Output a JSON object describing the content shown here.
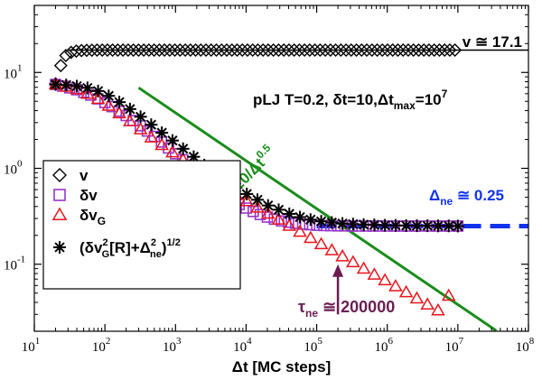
{
  "chart_data": {
    "type": "scatter",
    "title": "",
    "xlabel": "Δt [MC steps]",
    "ylabel": "",
    "xscale": "log",
    "yscale": "log",
    "xlim": [
      10,
      100000000
    ],
    "ylim": [
      0.02,
      50
    ],
    "x_ticks": [
      {
        "value": 10,
        "base": "10",
        "exp": "1"
      },
      {
        "value": 100,
        "base": "10",
        "exp": "2"
      },
      {
        "value": 1000,
        "base": "10",
        "exp": "3"
      },
      {
        "value": 10000,
        "base": "10",
        "exp": "4"
      },
      {
        "value": 100000,
        "base": "10",
        "exp": "5"
      },
      {
        "value": 1000000,
        "base": "10",
        "exp": "6"
      },
      {
        "value": 10000000,
        "base": "10",
        "exp": "7"
      },
      {
        "value": 100000000,
        "base": "10",
        "exp": "8"
      }
    ],
    "y_ticks": [
      {
        "value": 0.1,
        "base": "10",
        "exp": "-1"
      },
      {
        "value": 1,
        "base": "10",
        "exp": "0"
      },
      {
        "value": 10,
        "base": "10",
        "exp": "1"
      }
    ],
    "grid": false,
    "legend_position": "bottom-left",
    "series": [
      {
        "name": "v",
        "marker": "diamond",
        "color": "#000000",
        "x": [
          20,
          23.7,
          28,
          33.2,
          39.3,
          46.6,
          55.2,
          65.4,
          77.4,
          91.7,
          108.6,
          128.6,
          152.3,
          180.3,
          213.6,
          253,
          299.6,
          354.8,
          420.2,
          497.7,
          589.5,
          698.1,
          826.8,
          979.2,
          1159.7,
          1373.4,
          1626.7,
          1926.5,
          2281.7,
          2702.3,
          3200.5,
          3790.5,
          4489.3,
          5317,
          6297,
          7458,
          8833,
          10461,
          12390,
          14674,
          17379,
          20583,
          24378,
          28872,
          34195,
          40499,
          47965,
          56808,
          67281,
          79685,
          94375,
          111774,
          132380,
          156785,
          185689,
          219922,
          260466,
          308484,
          365355,
          432711,
          512483,
          606961,
          718857,
          851384,
          1008343,
          1194239,
          1414406,
          1675161,
          1983989,
          2349752,
          2782945,
          3296000,
          3903640,
          4623301,
          5475635,
          6485106,
          7680681,
          9096671
        ],
        "y": [
          7.6,
          11.8,
          15.0,
          16.2,
          16.7,
          16.9,
          17.0,
          17.05,
          17.1,
          17.1,
          17.1,
          17.1,
          17.1,
          17.1,
          17.1,
          17.1,
          17.1,
          17.1,
          17.1,
          17.1,
          17.1,
          17.1,
          17.1,
          17.1,
          17.1,
          17.1,
          17.1,
          17.1,
          17.1,
          17.1,
          17.1,
          17.1,
          17.1,
          17.1,
          17.1,
          17.1,
          17.1,
          17.1,
          17.1,
          17.1,
          17.1,
          17.1,
          17.1,
          17.1,
          17.1,
          17.1,
          17.1,
          17.1,
          17.1,
          17.1,
          17.1,
          17.1,
          17.1,
          17.1,
          17.1,
          17.1,
          17.1,
          17.1,
          17.1,
          17.1,
          17.1,
          17.1,
          17.1,
          17.1,
          17.1,
          17.1,
          17.1,
          17.1,
          17.1,
          17.1,
          17.1,
          17.1,
          17.1,
          17.1,
          17.1,
          17.1,
          17.1,
          17.1
        ]
      },
      {
        "name": "δv",
        "marker": "square",
        "color": "#9a35c9",
        "x": [
          20,
          25.2,
          31.7,
          39.9,
          50.2,
          63.2,
          79.6,
          100.2,
          126.2,
          158.9,
          200,
          251.8,
          317,
          399.1,
          502.4,
          632.5,
          796.3,
          1002.5,
          1262,
          1588.9,
          2000,
          2517.9,
          3169.8,
          3990.5,
          5023.8,
          6324.6,
          7962.1,
          10023.7,
          12619.1,
          15886.6,
          20000,
          25178.5,
          31697.9,
          39905.2,
          50237.7,
          63245.6,
          79621.4,
          100237.4,
          126191.5,
          158865.6,
          200000,
          251785.1,
          316978.5,
          399052.5,
          502377.3,
          632455.5,
          796214.3,
          1002374,
          1261915,
          1588656,
          2000000,
          2517851,
          3169786,
          3990525,
          5023773,
          6324555,
          7962143,
          10000000
        ],
        "y": [
          7.5,
          7.2,
          6.9,
          6.6,
          6.2,
          5.8,
          5.3,
          4.85,
          4.4,
          3.95,
          3.55,
          3.15,
          2.78,
          2.45,
          2.15,
          1.88,
          1.63,
          1.42,
          1.23,
          1.06,
          0.92,
          0.8,
          0.69,
          0.6,
          0.52,
          0.465,
          0.42,
          0.385,
          0.355,
          0.33,
          0.31,
          0.295,
          0.283,
          0.274,
          0.267,
          0.262,
          0.258,
          0.255,
          0.253,
          0.252,
          0.251,
          0.251,
          0.25,
          0.25,
          0.25,
          0.25,
          0.25,
          0.25,
          0.25,
          0.25,
          0.25,
          0.25,
          0.25,
          0.25,
          0.25,
          0.25,
          0.25,
          0.25
        ]
      },
      {
        "name": "δv_G",
        "marker": "triangle",
        "color": "#e8141c",
        "x": [
          20,
          28.3,
          40,
          56.6,
          80,
          113.1,
          160,
          226.3,
          320,
          452.5,
          640,
          905.1,
          1280,
          1810.2,
          2560,
          3620.4,
          5120,
          7240.8,
          10240,
          14481.5,
          20480,
          28963.1,
          40960,
          57926.1,
          81920,
          115852.3,
          163840,
          231704.5,
          327680,
          463409,
          655360,
          926818,
          1310720,
          1853636,
          2621440,
          3707272,
          5242880,
          7414544
        ],
        "y": [
          7.5,
          7.1,
          6.7,
          6.0,
          5.3,
          4.5,
          3.75,
          3.1,
          2.55,
          2.1,
          1.75,
          1.47,
          1.23,
          1.03,
          0.86,
          0.73,
          0.62,
          0.53,
          0.455,
          0.39,
          0.337,
          0.292,
          0.252,
          0.218,
          0.188,
          0.162,
          0.14,
          0.121,
          0.105,
          0.09,
          0.078,
          0.068,
          0.059,
          0.051,
          0.044,
          0.038,
          0.033,
          0.047
        ]
      },
      {
        "name": "(δv_G²[R]+Δ_ne²)^1/2",
        "marker": "asterisk",
        "color": "#000000",
        "x": [
          20,
          28.3,
          40,
          56.6,
          80,
          113.1,
          160,
          226.3,
          320,
          452.5,
          640,
          905.1,
          1280,
          1810.2,
          2560,
          3620.4,
          5120,
          7240.8,
          10240,
          14481.5,
          20480,
          28963.1,
          40960,
          57926.1,
          81920,
          115852.3,
          163840,
          231704.5,
          327680,
          463409,
          655360,
          926818,
          1310720,
          1853636,
          2621440,
          3707272,
          5242880,
          7414544,
          10000000
        ],
        "y": [
          7.5,
          7.4,
          7.2,
          6.9,
          6.4,
          5.7,
          4.9,
          4.15,
          3.45,
          2.85,
          2.35,
          1.95,
          1.6,
          1.32,
          1.08,
          0.9,
          0.75,
          0.63,
          0.54,
          0.47,
          0.41,
          0.37,
          0.335,
          0.31,
          0.292,
          0.28,
          0.272,
          0.266,
          0.262,
          0.259,
          0.257,
          0.255,
          0.254,
          0.253,
          0.252,
          0.252,
          0.251,
          0.251,
          0.25
        ]
      }
    ],
    "reference_lines": [
      {
        "label": "v ≅ 17.1",
        "y": 17.1,
        "x_start": 30,
        "x_end": 100000000,
        "color": "#000000",
        "style": "solid"
      },
      {
        "label_main": "Δ",
        "label_sub": "ne",
        "label_rest": " ≅ 0.25",
        "y": 0.25,
        "x_start": 100000,
        "x_end": 100000000,
        "color": "#1133ee",
        "style": "dashed"
      },
      {
        "label_main": "120/Δt",
        "label_sup": "0.5",
        "coef": 120,
        "exponent": -0.5,
        "x_start": 300,
        "x_end": 35000000,
        "color": "#1a8c1a",
        "style": "solid"
      }
    ],
    "annotations": {
      "params": {
        "text_a": "pLJ T=0.2, δt=10,Δt",
        "sub": "max",
        "text_b": "=10",
        "sup": "7"
      },
      "tau": {
        "main": "τ",
        "sub": "ne",
        "rest": " ≅ 200000",
        "color": "#6b1d52",
        "arrow_x": 200000,
        "arrow_y_from": 0.03,
        "arrow_y_to": 0.1
      }
    },
    "legend": [
      {
        "marker": "diamond",
        "color": "#000000",
        "main": "v"
      },
      {
        "marker": "square",
        "color": "#9a35c9",
        "main": "δv"
      },
      {
        "marker": "triangle",
        "color": "#e8141c",
        "main": "δv",
        "sub": "G"
      },
      {
        "marker": "asterisk",
        "color": "#000000",
        "expr": true
      }
    ]
  }
}
